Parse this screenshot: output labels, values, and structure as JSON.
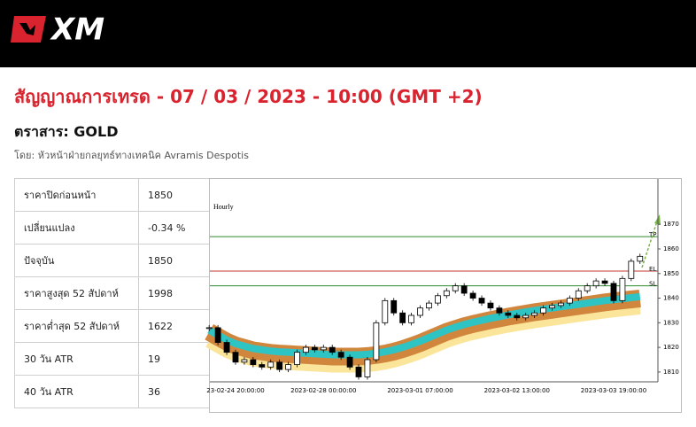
{
  "header": {
    "logo": "XM"
  },
  "title": "สัญญาณการเทรด - 07 / 03 / 2023 - 10:00 (GMT +2)",
  "instrument": "ตราสาร: GOLD",
  "author": "โดย: หัวหน้าฝ่ายกลยุทธ์ทางเทคนิค Avramis Despotis",
  "table": {
    "rows": [
      [
        "ราคาปิดก่อนหน้า",
        "1850"
      ],
      [
        "เปลี่ยนแปลง",
        "-0.34 %"
      ],
      [
        "ปัจจุบัน",
        "1850"
      ],
      [
        "ราคาสูงสุด 52 สัปดาห์",
        "1998"
      ],
      [
        "ราคาต่ำสุด 52 สัปดาห์",
        "1622"
      ],
      [
        "30 วัน ATR",
        "19"
      ],
      [
        "40 วัน ATR",
        "36"
      ]
    ]
  },
  "chart_data": {
    "type": "candlestick",
    "title": "Hourly",
    "categories": [
      null,
      null,
      null,
      "23-02-24 20:00:00",
      null,
      null,
      null,
      null,
      null,
      null,
      null,
      null,
      null,
      "2023-02-28 00:00:00",
      null,
      null,
      null,
      null,
      null,
      null,
      null,
      null,
      null,
      null,
      "2023-03-01 07:00:00",
      null,
      null,
      null,
      null,
      null,
      null,
      null,
      null,
      null,
      null,
      "2023-03-02 13:00:00",
      null,
      null,
      null,
      null,
      null,
      null,
      null,
      null,
      null,
      null,
      "2023-03-03 19:00:00",
      null,
      null,
      null
    ],
    "series": [
      {
        "color": "#000000",
        "values": [
          1828,
          1822,
          1818,
          1814,
          1815,
          1813,
          1812,
          1814,
          1811,
          1813,
          1818,
          1820,
          1819,
          1820,
          1818,
          1816,
          1812,
          1808,
          1815,
          1830,
          1839,
          1834,
          1830,
          1833,
          1836,
          1838,
          1841,
          1843,
          1845,
          1842,
          1840,
          1838,
          1836,
          1834,
          1833,
          1832,
          1833,
          1834,
          1836,
          1837,
          1838,
          1840,
          1843,
          1845,
          1847,
          1846,
          1839,
          1848,
          1855,
          1857
        ]
      },
      {
        "color": "#2ec4c4",
        "values": [
          1827,
          1825,
          1823,
          1821.5,
          1820.5,
          1819.5,
          1819,
          1818.5,
          1818.2,
          1818,
          1817.8,
          1817.6,
          1817.4,
          1817.2,
          1817,
          1817,
          1817,
          1817,
          1817.2,
          1817.6,
          1818.2,
          1819,
          1820,
          1821.2,
          1822.5,
          1824,
          1825.5,
          1827,
          1828.2,
          1829.3,
          1830.2,
          1831,
          1831.8,
          1832.5,
          1833.2,
          1833.8,
          1834.4,
          1835,
          1835.5,
          1836,
          1836.5,
          1837,
          1837.5,
          1838,
          1838.5,
          1839,
          1839.4,
          1839.8,
          1840.2,
          1840.6
        ]
      }
    ],
    "levels": [
      {
        "label": "TP",
        "value": 1865,
        "color": "#2e8b2e"
      },
      {
        "label": "EL",
        "value": 1851,
        "color": "#c0392b"
      },
      {
        "label": "SL",
        "value": 1845,
        "color": "#2e8b2e"
      }
    ],
    "ylim": [
      1806,
      1887
    ],
    "yticks": [
      1810,
      1820,
      1830,
      1840,
      1850,
      1860,
      1870
    ]
  }
}
